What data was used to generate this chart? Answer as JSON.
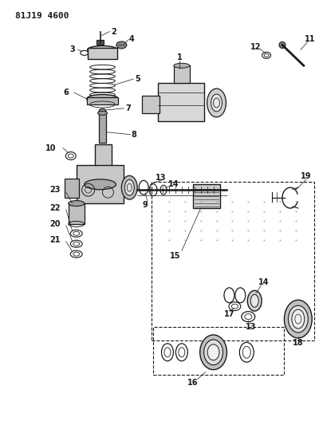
{
  "title": "81J19 4600",
  "bg_color": "#ffffff",
  "line_color": "#1a1a1a",
  "figsize": [
    4.06,
    5.33
  ],
  "dpi": 100
}
